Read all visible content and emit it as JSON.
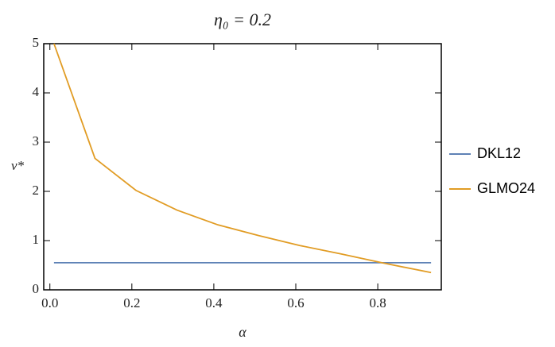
{
  "chart_data": {
    "type": "line",
    "title": "η₀ = 0.2",
    "x_label": "α",
    "y_label": "ν*",
    "x": [
      0.01,
      0.11,
      0.21,
      0.31,
      0.41,
      0.51,
      0.61,
      0.71,
      0.81,
      0.93
    ],
    "series": [
      {
        "name": "DKL12",
        "color": "#5e81b5",
        "values": [
          0.55,
          0.55,
          0.55,
          0.55,
          0.55,
          0.55,
          0.55,
          0.55,
          0.55,
          0.55
        ]
      },
      {
        "name": "GLMO24",
        "color": "#e19c24",
        "values": [
          5,
          2.67,
          2.02,
          1.62,
          1.32,
          1.1,
          0.9,
          0.73,
          0.55,
          0.35
        ]
      }
    ],
    "xlim": [
      -0.015,
      0.955
    ],
    "ylim": [
      0,
      5
    ],
    "xticks": [
      {
        "value": 0,
        "label": "0.0"
      },
      0.2,
      0.4,
      0.6,
      0.8
    ],
    "yticks": [
      0,
      1,
      2,
      3,
      4,
      5
    ],
    "grid": false,
    "legend": "right"
  }
}
